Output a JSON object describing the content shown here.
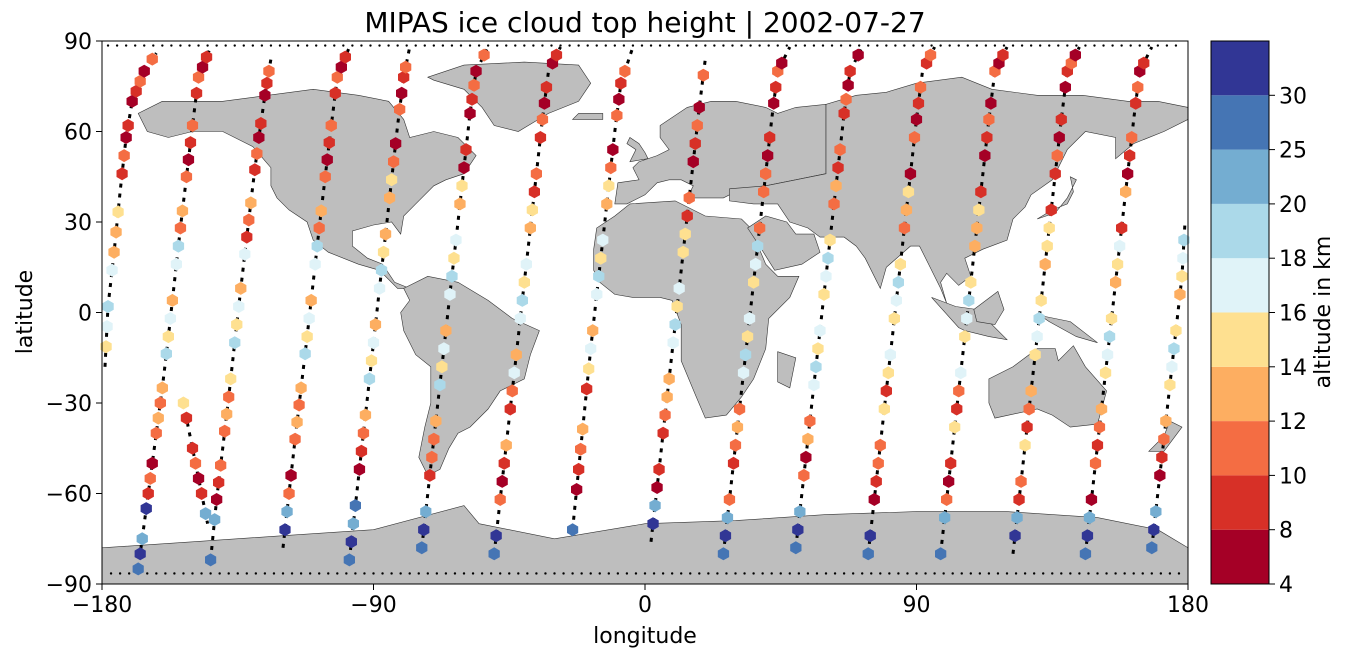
{
  "title": "MIPAS ice cloud top height | 2002-07-27",
  "chart_data": {
    "type": "scatter",
    "xlabel": "longitude",
    "ylabel": "latitude",
    "xlim": [
      -180,
      180
    ],
    "ylim": [
      -90,
      90
    ],
    "x_ticks": [
      "−180",
      "−90",
      "0",
      "90",
      "180"
    ],
    "y_ticks": [
      "90",
      "60",
      "30",
      "0",
      "−30",
      "−60",
      "−90"
    ],
    "land_color": "#bebebe",
    "colorbar": {
      "label": "altitude in km",
      "boundaries": [
        4,
        8,
        10,
        12,
        14,
        16,
        18,
        20,
        25,
        30
      ],
      "tick_labels": [
        "4",
        "8",
        "10",
        "12",
        "14",
        "16",
        "18",
        "20",
        "25",
        "30"
      ],
      "colors": [
        "#a50026",
        "#d73027",
        "#f46d43",
        "#fdae61",
        "#fee090",
        "#e0f3f8",
        "#abd9e9",
        "#74add1",
        "#4575b4",
        "#313695"
      ]
    },
    "tracks": [
      {
        "pts": [
          [
            -179,
            -18
          ],
          [
            -178,
            2
          ],
          [
            -176,
            20
          ],
          [
            -174,
            40
          ],
          [
            -172,
            58
          ],
          [
            -170,
            70
          ],
          [
            -166,
            80
          ],
          [
            -162,
            86
          ]
        ],
        "color": "mixed"
      },
      {
        "pts": [
          [
            -168,
            -85
          ],
          [
            -166,
            -70
          ],
          [
            -164,
            -55
          ],
          [
            -162,
            -40
          ],
          [
            -160,
            -25
          ],
          [
            -158,
            -8
          ],
          [
            -156,
            10
          ],
          [
            -154,
            28
          ],
          [
            -152,
            45
          ],
          [
            -150,
            62
          ],
          [
            -148,
            78
          ],
          [
            -144,
            88
          ]
        ]
      },
      {
        "pts": [
          [
            -153,
            -30
          ],
          [
            -150,
            -45
          ],
          [
            -147,
            -60
          ],
          [
            -145,
            -70
          ]
        ]
      },
      {
        "pts": [
          [
            -144,
            -82
          ],
          [
            -142,
            -62
          ],
          [
            -140,
            -45
          ],
          [
            -138,
            -28
          ],
          [
            -136,
            -10
          ],
          [
            -134,
            8
          ],
          [
            -132,
            25
          ],
          [
            -130,
            42
          ],
          [
            -128,
            58
          ],
          [
            -126,
            72
          ],
          [
            -124,
            84
          ]
        ]
      },
      {
        "pts": [
          [
            -120,
            -78
          ],
          [
            -118,
            -60
          ],
          [
            -116,
            -42
          ],
          [
            -114,
            -25
          ],
          [
            -112,
            -8
          ],
          [
            -110,
            10
          ],
          [
            -108,
            28
          ],
          [
            -106,
            45
          ],
          [
            -104,
            62
          ],
          [
            -102,
            78
          ],
          [
            -98,
            88
          ]
        ]
      },
      {
        "pts": [
          [
            -98,
            -82
          ],
          [
            -96,
            -64
          ],
          [
            -94,
            -46
          ],
          [
            -92,
            -28
          ],
          [
            -90,
            -10
          ],
          [
            -88,
            8
          ],
          [
            -86,
            26
          ],
          [
            -84,
            44
          ],
          [
            -82,
            62
          ],
          [
            -80,
            78
          ],
          [
            -78,
            88
          ]
        ]
      },
      {
        "pts": [
          [
            -74,
            -78
          ],
          [
            -72,
            -60
          ],
          [
            -70,
            -42
          ],
          [
            -68,
            -24
          ],
          [
            -66,
            -6
          ],
          [
            -64,
            12
          ],
          [
            -62,
            30
          ],
          [
            -60,
            48
          ],
          [
            -58,
            66
          ],
          [
            -56,
            80
          ],
          [
            -52,
            88
          ]
        ]
      },
      {
        "pts": [
          [
            -50,
            -80
          ],
          [
            -48,
            -62
          ],
          [
            -46,
            -44
          ],
          [
            -44,
            -26
          ],
          [
            -42,
            -8
          ],
          [
            -40,
            10
          ],
          [
            -38,
            28
          ],
          [
            -36,
            46
          ],
          [
            -34,
            64
          ],
          [
            -32,
            80
          ],
          [
            -28,
            88
          ]
        ]
      },
      {
        "pts": [
          [
            -24,
            -72
          ],
          [
            -22,
            -52
          ],
          [
            -20,
            -32
          ],
          [
            -18,
            -12
          ],
          [
            -16,
            6
          ],
          [
            -14,
            24
          ],
          [
            -12,
            42
          ],
          [
            -10,
            60
          ],
          [
            -8,
            76
          ],
          [
            -4,
            88
          ]
        ]
      },
      {
        "pts": [
          [
            2,
            -76
          ],
          [
            4,
            -58
          ],
          [
            6,
            -40
          ],
          [
            8,
            -22
          ],
          [
            10,
            -4
          ],
          [
            12,
            14
          ],
          [
            14,
            32
          ],
          [
            16,
            50
          ],
          [
            18,
            68
          ],
          [
            20,
            84
          ]
        ]
      },
      {
        "pts": [
          [
            26,
            -80
          ],
          [
            28,
            -62
          ],
          [
            30,
            -44
          ],
          [
            32,
            -26
          ],
          [
            34,
            -8
          ],
          [
            36,
            10
          ],
          [
            38,
            28
          ],
          [
            40,
            46
          ],
          [
            42,
            64
          ],
          [
            44,
            80
          ],
          [
            48,
            88
          ]
        ]
      },
      {
        "pts": [
          [
            50,
            -78
          ],
          [
            52,
            -60
          ],
          [
            54,
            -42
          ],
          [
            56,
            -24
          ],
          [
            58,
            -6
          ],
          [
            60,
            12
          ],
          [
            62,
            30
          ],
          [
            64,
            48
          ],
          [
            66,
            66
          ],
          [
            68,
            80
          ],
          [
            72,
            88
          ]
        ]
      },
      {
        "pts": [
          [
            74,
            -80
          ],
          [
            76,
            -62
          ],
          [
            78,
            -44
          ],
          [
            80,
            -26
          ],
          [
            82,
            -8
          ],
          [
            84,
            10
          ],
          [
            86,
            28
          ],
          [
            88,
            46
          ],
          [
            90,
            64
          ],
          [
            92,
            80
          ],
          [
            96,
            88
          ]
        ]
      },
      {
        "pts": [
          [
            98,
            -80
          ],
          [
            100,
            -62
          ],
          [
            102,
            -44
          ],
          [
            104,
            -26
          ],
          [
            106,
            -8
          ],
          [
            108,
            10
          ],
          [
            110,
            28
          ],
          [
            112,
            46
          ],
          [
            114,
            64
          ],
          [
            116,
            80
          ],
          [
            120,
            88
          ]
        ]
      },
      {
        "pts": [
          [
            122,
            -80
          ],
          [
            124,
            -62
          ],
          [
            126,
            -44
          ],
          [
            128,
            -26
          ],
          [
            130,
            -8
          ],
          [
            132,
            10
          ],
          [
            134,
            28
          ],
          [
            136,
            46
          ],
          [
            138,
            64
          ],
          [
            140,
            80
          ],
          [
            144,
            88
          ]
        ]
      },
      {
        "pts": [
          [
            146,
            -80
          ],
          [
            148,
            -62
          ],
          [
            150,
            -44
          ],
          [
            152,
            -26
          ],
          [
            154,
            -8
          ],
          [
            156,
            10
          ],
          [
            158,
            28
          ],
          [
            160,
            46
          ],
          [
            162,
            64
          ],
          [
            164,
            80
          ],
          [
            168,
            88
          ]
        ]
      },
      {
        "pts": [
          [
            168,
            -78
          ],
          [
            170,
            -60
          ],
          [
            172,
            -42
          ],
          [
            174,
            -24
          ],
          [
            176,
            -6
          ],
          [
            178,
            12
          ],
          [
            179,
            30
          ]
        ]
      }
    ]
  }
}
